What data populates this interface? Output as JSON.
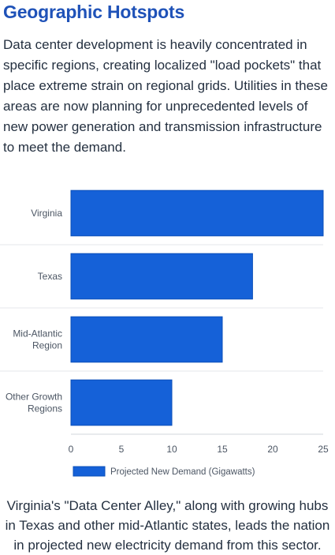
{
  "heading": "Geographic Hotspots",
  "intro": "Data center development is heavily concentrated in specific regions, creating localized \"load pockets\" that place extreme strain on regional grids. Utilities in these areas are now planning for unprecedented levels of new power generation and transmission infrastructure to meet the demand.",
  "caption": "Virginia's \"Data Center Alley,\" along with growing hubs in Texas and other mid-Atlantic states, leads the nation in projected new electricity demand from this sector.",
  "colors": {
    "bar": "#1561d8",
    "heading": "#1f52b8"
  },
  "chart_data": {
    "type": "bar",
    "orientation": "horizontal",
    "categories": [
      [
        "Virginia"
      ],
      [
        "Texas"
      ],
      [
        "Mid-Atlantic",
        "Region"
      ],
      [
        "Other Growth",
        "Regions"
      ]
    ],
    "series": [
      {
        "name": "Projected New Demand (Gigawatts)",
        "values": [
          25,
          18,
          15,
          10
        ]
      }
    ],
    "xlim": [
      0,
      25
    ],
    "xticks": [
      0,
      5,
      10,
      15,
      20,
      25
    ],
    "grid": true,
    "legend": "bottom"
  }
}
